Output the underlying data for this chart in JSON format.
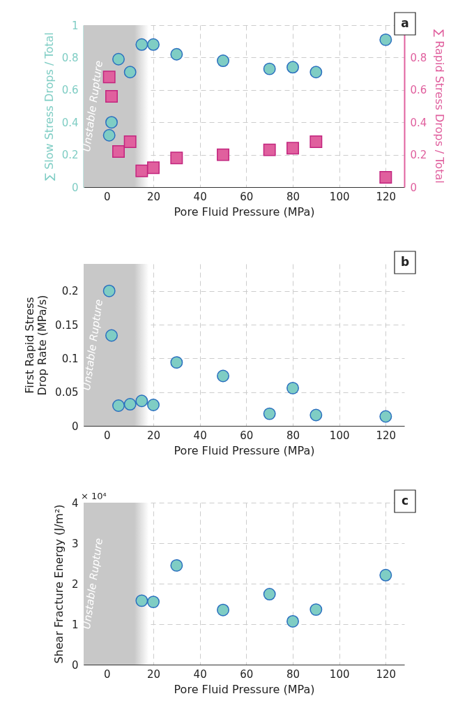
{
  "chart_data": [
    {
      "type": "scatter",
      "xlabel": "Pore Fluid Pressure (MPa)",
      "ylabel": "∑ Slow Stress Drops / Total",
      "y2label": "∑ Rapid Stress Drops / Total",
      "x": [
        1,
        2,
        5,
        10,
        15,
        20,
        30,
        50,
        70,
        80,
        90,
        120
      ],
      "xlim": [
        -10,
        128
      ],
      "xticks": [
        0,
        20,
        40,
        60,
        80,
        100,
        120
      ],
      "ylim": [
        0,
        1
      ],
      "yticks": [
        0,
        0.2,
        0.4,
        0.6,
        0.8,
        1
      ],
      "y2lim": [
        0,
        1
      ],
      "y2ticks": [
        0,
        0.2,
        0.4,
        0.6,
        0.8
      ],
      "grid": true,
      "series": [
        {
          "color": "#7fcdc4",
          "marker": "circle",
          "values": [
            0.32,
            0.4,
            0.79,
            0.71,
            0.88,
            0.88,
            0.82,
            0.78,
            0.73,
            0.74,
            0.71,
            0.91
          ]
        },
        {
          "color": "#e0609e",
          "marker": "square",
          "axis": "y2",
          "values": [
            0.68,
            0.56,
            0.22,
            0.28,
            0.1,
            0.12,
            0.18,
            0.2,
            0.23,
            0.24,
            0.28,
            0.06
          ]
        }
      ],
      "bands": [
        {
          "axis": "x",
          "from": -10,
          "to": 18,
          "label": "Unstable Rupture",
          "color": "#c8c8c8"
        }
      ],
      "annotations": [
        "a"
      ]
    },
    {
      "type": "scatter",
      "xlabel": "Pore Fluid Pressure (MPa)",
      "ylabel": "First Rapid Stress Drop Rate (MPa/s)",
      "x": [
        1,
        2,
        5,
        10,
        15,
        20,
        30,
        50,
        70,
        80,
        90,
        120
      ],
      "xlim": [
        -10,
        128
      ],
      "xticks": [
        0,
        20,
        40,
        60,
        80,
        100,
        120
      ],
      "ylim": [
        0,
        0.24
      ],
      "yticks": [
        0,
        0.05,
        0.1,
        0.15,
        0.2
      ],
      "grid": true,
      "marker": "circle",
      "series": [
        {
          "color": "#7fcdc4",
          "values": [
            0.2,
            0.134,
            0.03,
            0.032,
            0.037,
            0.031,
            0.094,
            0.074,
            0.018,
            0.056,
            0.016,
            0.014
          ]
        }
      ],
      "bands": [
        {
          "axis": "x",
          "from": -10,
          "to": 18,
          "label": "Unstable Rupture",
          "color": "#c8c8c8"
        }
      ],
      "annotations": [
        "b"
      ]
    },
    {
      "type": "scatter",
      "xlabel": "Pore Fluid Pressure (MPa)",
      "ylabel": "Shear Fracture Energy (J/m²)",
      "x": [
        15,
        20,
        30,
        50,
        70,
        80,
        90,
        120
      ],
      "xlim": [
        -10,
        128
      ],
      "xticks": [
        0,
        20,
        40,
        60,
        80,
        100,
        120
      ],
      "ylim": [
        0,
        4
      ],
      "yticks": [
        0,
        1,
        2,
        3,
        4
      ],
      "grid": true,
      "marker": "circle",
      "series": [
        {
          "color": "#7fcdc4",
          "values": [
            1.58,
            1.55,
            2.45,
            1.35,
            1.74,
            1.07,
            1.36,
            2.21
          ]
        }
      ],
      "bands": [
        {
          "axis": "x",
          "from": -10,
          "to": 18,
          "label": "Unstable Rupture",
          "color": "#c8c8c8"
        }
      ],
      "annotations": [
        "× 10⁴",
        "c"
      ]
    }
  ]
}
